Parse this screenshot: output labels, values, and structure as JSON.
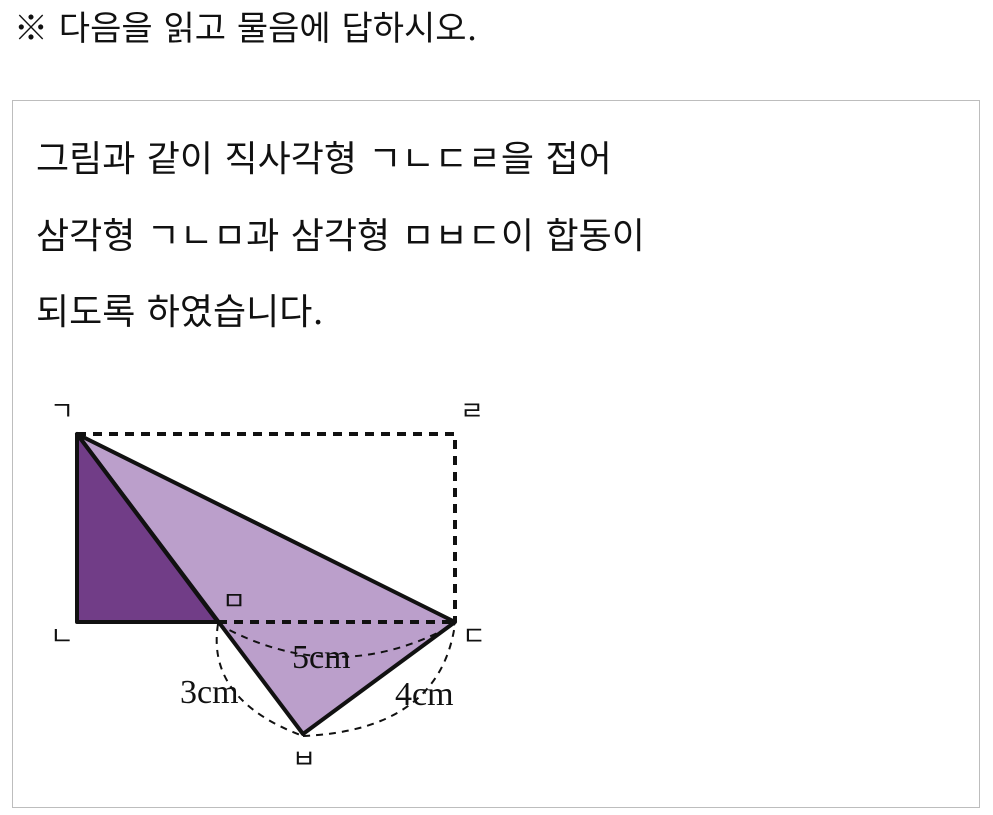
{
  "title": "※ 다음을 읽고 물음에 답하시오.",
  "passage": {
    "lines": [
      "그림과 같이 직사각형 ㄱㄴㄷㄹ을 접어",
      "삼각형 ㄱㄴㅁ과 삼각형 ㅁㅂㄷ이 합동이",
      "되도록 하였습니다."
    ]
  },
  "figure": {
    "vertex_labels": {
      "g": "ㄱ",
      "n": "ㄴ",
      "d": "ㄷ",
      "r": "ㄹ",
      "m": "ㅁ",
      "b": "ㅂ"
    },
    "measures": {
      "mb": "3cm",
      "md": "5cm",
      "bd": "4cm"
    },
    "colors": {
      "dark_triangle": "#713d87",
      "light_triangle": "#bb9fcb",
      "stroke": "#111111"
    }
  }
}
